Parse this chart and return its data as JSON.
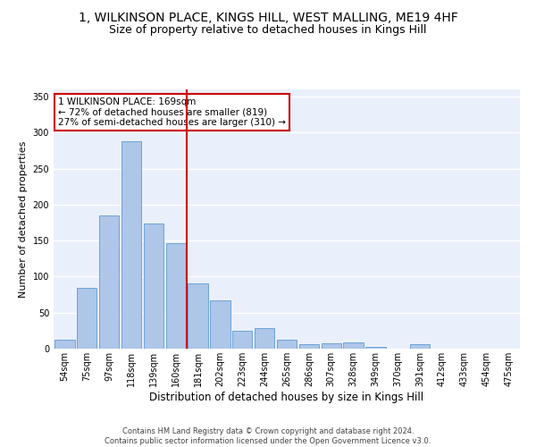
{
  "title": "1, WILKINSON PLACE, KINGS HILL, WEST MALLING, ME19 4HF",
  "subtitle": "Size of property relative to detached houses in Kings Hill",
  "xlabel": "Distribution of detached houses by size in Kings Hill",
  "ylabel": "Number of detached properties",
  "footer_line1": "Contains HM Land Registry data © Crown copyright and database right 2024.",
  "footer_line2": "Contains public sector information licensed under the Open Government Licence v3.0.",
  "bar_labels": [
    "54sqm",
    "75sqm",
    "97sqm",
    "118sqm",
    "139sqm",
    "160sqm",
    "181sqm",
    "202sqm",
    "223sqm",
    "244sqm",
    "265sqm",
    "286sqm",
    "307sqm",
    "328sqm",
    "349sqm",
    "370sqm",
    "391sqm",
    "412sqm",
    "433sqm",
    "454sqm",
    "475sqm"
  ],
  "bar_values": [
    13,
    85,
    185,
    288,
    174,
    147,
    91,
    67,
    25,
    29,
    13,
    6,
    7,
    9,
    3,
    0,
    6,
    0,
    0,
    0,
    0
  ],
  "bar_color": "#aec6e8",
  "bar_edge_color": "#5b9bd5",
  "reference_line_x": 5.5,
  "annotation_line1": "1 WILKINSON PLACE: 169sqm",
  "annotation_line2": "← 72% of detached houses are smaller (819)",
  "annotation_line3": "27% of semi-detached houses are larger (310) →",
  "annotation_box_color": "#ffffff",
  "annotation_border_color": "#cc0000",
  "vline_color": "#cc0000",
  "ylim": [
    0,
    360
  ],
  "yticks": [
    0,
    50,
    100,
    150,
    200,
    250,
    300,
    350
  ],
  "bg_color": "#eaf0fb",
  "grid_color": "#ffffff",
  "title_fontsize": 10,
  "subtitle_fontsize": 9,
  "ylabel_fontsize": 8,
  "xlabel_fontsize": 8.5,
  "tick_fontsize": 7,
  "annot_fontsize": 7.5,
  "footer_fontsize": 6
}
